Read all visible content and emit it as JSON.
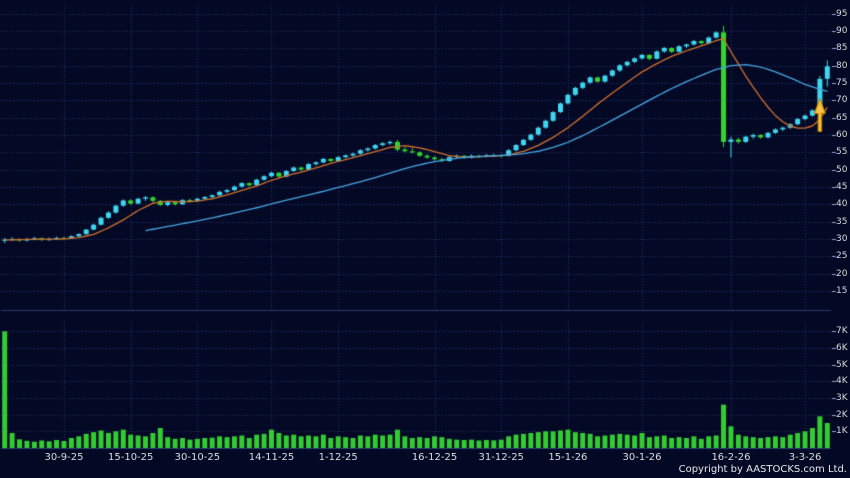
{
  "copyright": "Copyright by AASTOCKS.com Ltd.",
  "chart_data": {
    "type": "candlestick",
    "colors": {
      "background": "#030925",
      "grid": "#233066",
      "axis_tick": "#9aa4c8",
      "pane_border": "#2b3870",
      "up": "#3ed6f0",
      "down": "#33d433",
      "volume": "#33cc33",
      "ma_fast": "#cf6f2e",
      "ma_slow": "#4aa3e0"
    },
    "price_axis": {
      "tick_labels": [
        "95",
        "90",
        "85",
        "80",
        "75",
        "70",
        "65",
        "60",
        "55",
        "50",
        "45",
        "40",
        "35",
        "30",
        "25",
        "20",
        "15"
      ],
      "tick_values": [
        95,
        90,
        85,
        80,
        75,
        70,
        65,
        60,
        55,
        50,
        45,
        40,
        35,
        30,
        25,
        20,
        15
      ],
      "range": [
        9.5,
        97.5
      ]
    },
    "volume_axis": {
      "tick_labels": [
        "7K",
        "6K",
        "5K",
        "4K",
        "3K",
        "2K",
        "1K"
      ],
      "tick_values": [
        7000,
        6000,
        5000,
        4000,
        3000,
        2000,
        1000
      ],
      "range": [
        0,
        7500
      ]
    },
    "date_ticks": [
      {
        "index": 8,
        "label": "30-9-25"
      },
      {
        "index": 17,
        "label": "15-10-25"
      },
      {
        "index": 26,
        "label": "30-10-25"
      },
      {
        "index": 36,
        "label": "14-11-25"
      },
      {
        "index": 45,
        "label": "1-12-25"
      },
      {
        "index": 58,
        "label": "16-12-25"
      },
      {
        "index": 67,
        "label": "31-12-25"
      },
      {
        "index": 76,
        "label": "15-1-26"
      },
      {
        "index": 86,
        "label": "30-1-26"
      },
      {
        "index": 98,
        "label": "16-2-26"
      },
      {
        "index": 108,
        "label": "3-3-26"
      }
    ],
    "candles": [
      [
        29.5,
        30.3,
        28.8,
        29.8,
        7000
      ],
      [
        29.8,
        30.5,
        29.4,
        30.0,
        900
      ],
      [
        30.0,
        30.2,
        29.2,
        29.6,
        520
      ],
      [
        29.6,
        30.3,
        29.3,
        29.9,
        430
      ],
      [
        29.9,
        30.6,
        29.6,
        30.2,
        380
      ],
      [
        30.2,
        30.4,
        29.4,
        29.8,
        450
      ],
      [
        29.8,
        30.4,
        29.5,
        30.0,
        400
      ],
      [
        30.0,
        30.7,
        29.7,
        30.3,
        480
      ],
      [
        30.3,
        30.6,
        29.8,
        30.1,
        420
      ],
      [
        30.1,
        31.0,
        30.0,
        30.8,
        600
      ],
      [
        30.8,
        31.6,
        30.5,
        31.4,
        700
      ],
      [
        31.4,
        32.9,
        31.2,
        32.7,
        850
      ],
      [
        32.7,
        34.4,
        32.5,
        34.1,
        950
      ],
      [
        34.1,
        36.4,
        33.9,
        36.1,
        1050
      ],
      [
        36.1,
        38.0,
        35.8,
        37.6,
        900
      ],
      [
        37.6,
        39.9,
        37.3,
        39.6,
        1000
      ],
      [
        39.6,
        41.4,
        39.3,
        41.1,
        1100
      ],
      [
        41.1,
        41.5,
        39.8,
        40.2,
        800
      ],
      [
        40.2,
        41.9,
        40.0,
        41.6,
        750
      ],
      [
        41.6,
        42.4,
        41.0,
        42.0,
        700
      ],
      [
        42.0,
        42.3,
        40.6,
        41.0,
        900
      ],
      [
        41.0,
        41.2,
        39.5,
        39.8,
        1200
      ],
      [
        39.8,
        40.9,
        39.4,
        40.6,
        650
      ],
      [
        40.6,
        40.8,
        39.6,
        40.0,
        550
      ],
      [
        40.0,
        41.5,
        39.8,
        41.2,
        600
      ],
      [
        41.2,
        41.6,
        40.5,
        41.0,
        500
      ],
      [
        41.0,
        41.9,
        40.7,
        41.6,
        550
      ],
      [
        41.6,
        42.4,
        41.3,
        42.1,
        600
      ],
      [
        42.1,
        42.9,
        41.8,
        42.6,
        620
      ],
      [
        42.6,
        43.9,
        42.3,
        43.6,
        700
      ],
      [
        43.6,
        44.4,
        43.2,
        44.1,
        650
      ],
      [
        44.1,
        45.4,
        43.8,
        45.1,
        700
      ],
      [
        45.1,
        46.4,
        44.8,
        46.1,
        750
      ],
      [
        46.1,
        46.3,
        45.1,
        45.5,
        600
      ],
      [
        45.5,
        47.4,
        45.3,
        47.1,
        800
      ],
      [
        47.1,
        48.4,
        46.8,
        48.1,
        850
      ],
      [
        48.1,
        49.4,
        47.8,
        49.1,
        1100
      ],
      [
        49.1,
        49.3,
        47.7,
        48.0,
        900
      ],
      [
        48.0,
        49.9,
        47.8,
        49.6,
        750
      ],
      [
        49.6,
        50.9,
        49.3,
        50.6,
        800
      ],
      [
        50.6,
        50.8,
        49.6,
        50.0,
        700
      ],
      [
        50.0,
        51.9,
        49.8,
        51.6,
        750
      ],
      [
        51.6,
        52.4,
        51.1,
        52.1,
        700
      ],
      [
        52.1,
        53.4,
        51.8,
        53.1,
        800
      ],
      [
        53.1,
        53.3,
        52.1,
        52.5,
        600
      ],
      [
        52.5,
        53.9,
        52.2,
        53.6,
        700
      ],
      [
        53.6,
        54.4,
        53.2,
        54.1,
        650
      ],
      [
        54.1,
        54.9,
        53.7,
        54.6,
        600
      ],
      [
        54.6,
        55.9,
        54.3,
        55.6,
        750
      ],
      [
        55.6,
        56.4,
        55.2,
        56.1,
        700
      ],
      [
        56.1,
        57.4,
        55.8,
        57.1,
        800
      ],
      [
        57.1,
        57.9,
        56.7,
        57.6,
        750
      ],
      [
        57.6,
        58.4,
        57.2,
        58.0,
        800
      ],
      [
        58.0,
        58.6,
        55.3,
        55.8,
        1100
      ],
      [
        55.8,
        56.6,
        55.0,
        55.3,
        700
      ],
      [
        55.3,
        56.2,
        54.6,
        55.0,
        600
      ],
      [
        55.0,
        55.3,
        53.7,
        54.0,
        650
      ],
      [
        54.0,
        54.5,
        53.1,
        53.5,
        600
      ],
      [
        53.5,
        53.9,
        52.6,
        53.0,
        700
      ],
      [
        53.0,
        53.4,
        52.1,
        52.5,
        650
      ],
      [
        52.5,
        53.9,
        52.3,
        53.6,
        550
      ],
      [
        53.6,
        54.4,
        53.2,
        54.0,
        500
      ],
      [
        54.0,
        54.2,
        53.1,
        53.5,
        480
      ],
      [
        53.5,
        54.4,
        53.2,
        54.0,
        500
      ],
      [
        54.0,
        54.3,
        53.4,
        53.8,
        450
      ],
      [
        53.8,
        54.5,
        53.5,
        54.1,
        480
      ],
      [
        54.1,
        54.6,
        53.7,
        54.2,
        460
      ],
      [
        54.2,
        54.5,
        53.5,
        54.0,
        500
      ],
      [
        54.0,
        55.9,
        53.8,
        55.6,
        700
      ],
      [
        55.6,
        57.4,
        55.3,
        57.1,
        800
      ],
      [
        57.1,
        58.9,
        56.8,
        58.6,
        850
      ],
      [
        58.6,
        60.4,
        58.3,
        60.1,
        900
      ],
      [
        60.1,
        62.4,
        59.8,
        62.1,
        950
      ],
      [
        62.1,
        64.4,
        61.8,
        64.1,
        1000
      ],
      [
        64.1,
        66.9,
        63.8,
        66.6,
        1000
      ],
      [
        66.6,
        69.4,
        66.3,
        69.1,
        1050
      ],
      [
        69.1,
        71.9,
        68.8,
        71.6,
        1100
      ],
      [
        71.6,
        73.9,
        71.3,
        73.6,
        950
      ],
      [
        73.6,
        75.4,
        73.2,
        75.1,
        900
      ],
      [
        75.1,
        76.9,
        74.7,
        76.6,
        850
      ],
      [
        76.6,
        76.8,
        75.1,
        75.4,
        700
      ],
      [
        75.4,
        77.4,
        75.1,
        77.1,
        750
      ],
      [
        77.1,
        78.9,
        76.8,
        78.6,
        800
      ],
      [
        78.6,
        80.4,
        78.2,
        80.1,
        850
      ],
      [
        80.1,
        81.4,
        79.7,
        81.1,
        800
      ],
      [
        81.1,
        82.4,
        80.7,
        82.1,
        750
      ],
      [
        82.1,
        83.4,
        81.7,
        83.1,
        900
      ],
      [
        83.1,
        83.3,
        81.6,
        82.0,
        650
      ],
      [
        82.0,
        84.4,
        81.8,
        84.1,
        700
      ],
      [
        84.1,
        85.4,
        83.7,
        85.1,
        750
      ],
      [
        85.1,
        85.3,
        83.6,
        84.0,
        600
      ],
      [
        84.0,
        85.9,
        83.8,
        85.6,
        650
      ],
      [
        85.6,
        86.4,
        85.1,
        86.1,
        600
      ],
      [
        86.1,
        87.4,
        85.8,
        87.1,
        700
      ],
      [
        87.1,
        87.3,
        86.1,
        86.5,
        550
      ],
      [
        86.5,
        88.4,
        86.2,
        88.1,
        700
      ],
      [
        88.1,
        89.9,
        87.8,
        89.6,
        750
      ],
      [
        89.6,
        91.5,
        56.5,
        58.0,
        2600
      ],
      [
        58.0,
        59.5,
        53.5,
        58.7,
        1300
      ],
      [
        58.7,
        59.2,
        57.5,
        58.0,
        800
      ],
      [
        58.0,
        59.8,
        57.7,
        59.5,
        700
      ],
      [
        59.5,
        60.4,
        58.9,
        60.0,
        650
      ],
      [
        60.0,
        60.2,
        58.9,
        59.3,
        600
      ],
      [
        59.3,
        60.9,
        59.0,
        60.6,
        650
      ],
      [
        60.6,
        61.9,
        60.3,
        61.6,
        700
      ],
      [
        61.6,
        62.4,
        61.1,
        62.1,
        650
      ],
      [
        62.1,
        63.4,
        61.8,
        63.1,
        800
      ],
      [
        63.1,
        64.9,
        62.8,
        64.6,
        900
      ],
      [
        64.6,
        65.9,
        64.2,
        65.6,
        1000
      ],
      [
        65.6,
        67.4,
        65.3,
        67.1,
        1200
      ],
      [
        67.1,
        77.0,
        66.8,
        76.2,
        1900
      ],
      [
        76.2,
        81.5,
        74.0,
        79.8,
        1500
      ]
    ],
    "ma_lines": [
      {
        "name": "ma-fast",
        "color": "#cf6f2e",
        "points": [
          [
            0,
            29.7
          ],
          [
            4,
            29.9
          ],
          [
            8,
            30.0
          ],
          [
            10,
            30.4
          ],
          [
            12,
            31.3
          ],
          [
            14,
            33.2
          ],
          [
            16,
            35.5
          ],
          [
            18,
            38.2
          ],
          [
            20,
            40.3
          ],
          [
            22,
            40.9
          ],
          [
            24,
            40.7
          ],
          [
            26,
            40.9
          ],
          [
            28,
            41.6
          ],
          [
            30,
            42.7
          ],
          [
            32,
            44.0
          ],
          [
            34,
            45.3
          ],
          [
            36,
            46.9
          ],
          [
            38,
            48.2
          ],
          [
            40,
            49.3
          ],
          [
            42,
            50.5
          ],
          [
            44,
            51.8
          ],
          [
            46,
            52.9
          ],
          [
            48,
            54.0
          ],
          [
            50,
            55.2
          ],
          [
            52,
            56.4
          ],
          [
            54,
            56.9
          ],
          [
            56,
            56.3
          ],
          [
            58,
            55.2
          ],
          [
            60,
            54.0
          ],
          [
            62,
            53.6
          ],
          [
            64,
            53.7
          ],
          [
            66,
            53.9
          ],
          [
            68,
            54.2
          ],
          [
            70,
            55.3
          ],
          [
            72,
            57.0
          ],
          [
            74,
            59.3
          ],
          [
            76,
            62.1
          ],
          [
            78,
            65.4
          ],
          [
            80,
            68.9
          ],
          [
            82,
            72.1
          ],
          [
            84,
            75.2
          ],
          [
            86,
            78.2
          ],
          [
            88,
            80.6
          ],
          [
            90,
            82.7
          ],
          [
            92,
            84.3
          ],
          [
            94,
            85.7
          ],
          [
            96,
            87.2
          ],
          [
            97,
            87.8
          ],
          [
            98,
            84.0
          ],
          [
            99,
            80.5
          ],
          [
            100,
            77.0
          ],
          [
            101,
            73.8
          ],
          [
            102,
            70.8
          ],
          [
            103,
            68.0
          ],
          [
            104,
            65.6
          ],
          [
            105,
            63.8
          ],
          [
            106,
            62.6
          ],
          [
            107,
            62.0
          ],
          [
            108,
            62.0
          ],
          [
            109,
            62.6
          ],
          [
            110,
            64.5
          ],
          [
            111,
            68.0
          ]
        ]
      },
      {
        "name": "ma-slow",
        "color": "#4aa3e0",
        "points": [
          [
            19,
            32.4
          ],
          [
            20,
            32.8
          ],
          [
            22,
            33.6
          ],
          [
            24,
            34.4
          ],
          [
            26,
            35.2
          ],
          [
            28,
            36.1
          ],
          [
            30,
            37.0
          ],
          [
            32,
            38.0
          ],
          [
            34,
            39.0
          ],
          [
            36,
            40.1
          ],
          [
            38,
            41.2
          ],
          [
            40,
            42.2
          ],
          [
            42,
            43.2
          ],
          [
            44,
            44.3
          ],
          [
            46,
            45.4
          ],
          [
            48,
            46.5
          ],
          [
            50,
            47.7
          ],
          [
            52,
            49.0
          ],
          [
            54,
            50.3
          ],
          [
            56,
            51.4
          ],
          [
            58,
            52.3
          ],
          [
            60,
            53.0
          ],
          [
            62,
            53.5
          ],
          [
            64,
            53.8
          ],
          [
            66,
            54.0
          ],
          [
            68,
            54.2
          ],
          [
            70,
            54.6
          ],
          [
            72,
            55.3
          ],
          [
            74,
            56.4
          ],
          [
            76,
            57.9
          ],
          [
            78,
            59.8
          ],
          [
            80,
            62.0
          ],
          [
            82,
            64.3
          ],
          [
            84,
            66.6
          ],
          [
            86,
            68.9
          ],
          [
            88,
            71.2
          ],
          [
            90,
            73.4
          ],
          [
            92,
            75.4
          ],
          [
            94,
            77.2
          ],
          [
            96,
            78.9
          ],
          [
            98,
            80.0
          ],
          [
            100,
            80.3
          ],
          [
            102,
            79.6
          ],
          [
            104,
            78.2
          ],
          [
            106,
            76.5
          ],
          [
            108,
            74.6
          ],
          [
            110,
            73.2
          ],
          [
            111,
            72.6
          ]
        ]
      }
    ],
    "marker": {
      "type": "up-arrow",
      "index": 110,
      "price_tip": 70.5,
      "price_base": 61.0,
      "color": "#f6c33c",
      "outline": "#c07f00"
    }
  }
}
